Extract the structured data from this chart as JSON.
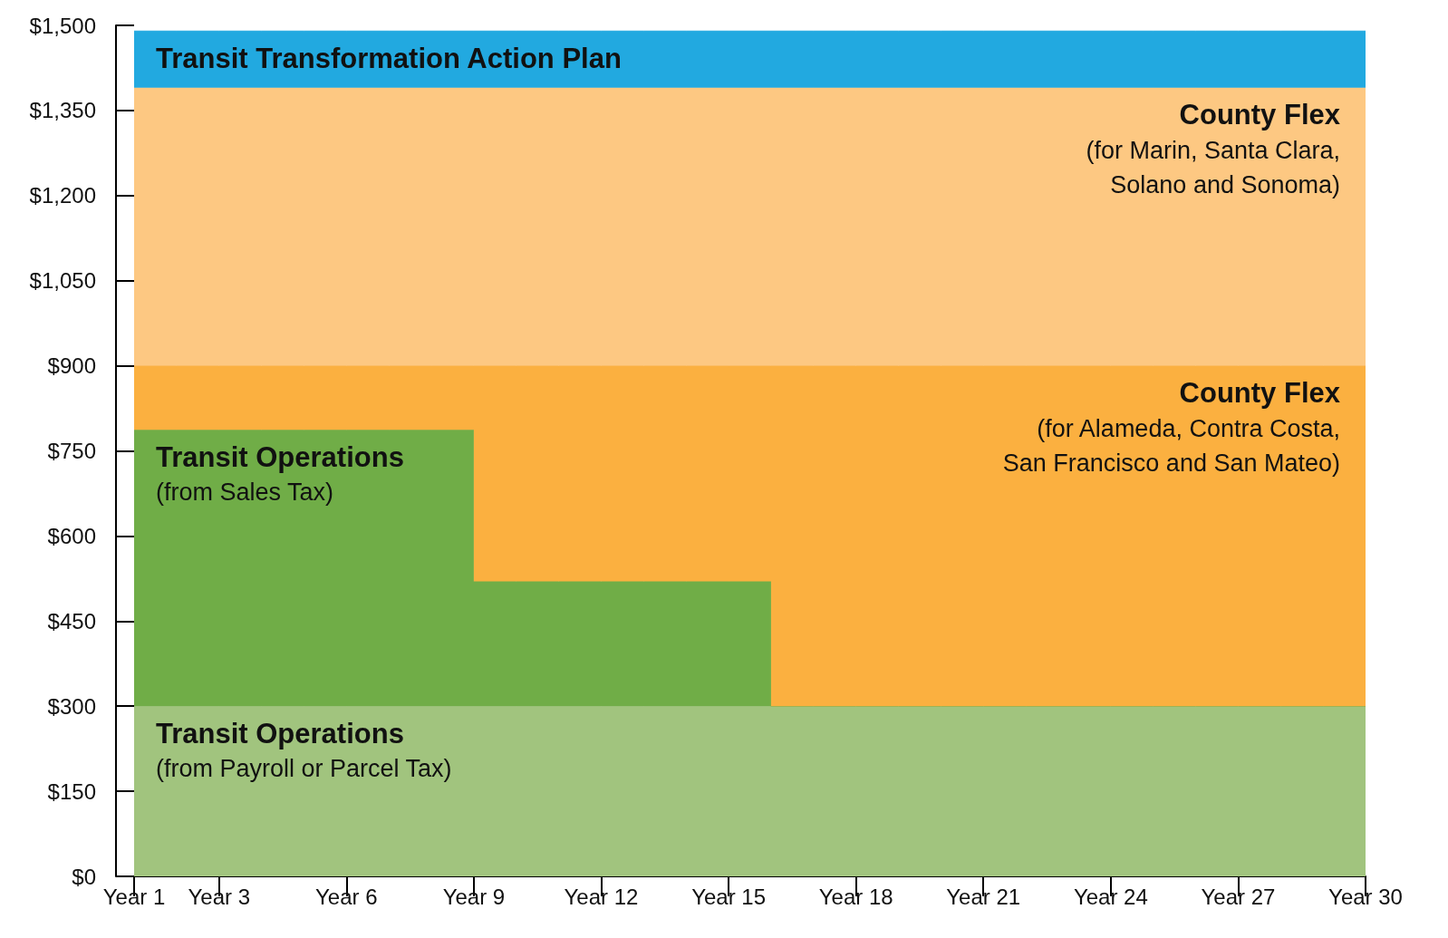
{
  "chart_data": {
    "type": "area",
    "stacked": true,
    "categories": [
      "Year 1",
      null,
      "Year 3",
      null,
      null,
      "Year 6",
      null,
      null,
      "Year 9",
      null,
      null,
      "Year 12",
      null,
      null,
      "Year 15",
      null,
      null,
      "Year 18",
      null,
      null,
      "Year 21",
      null,
      null,
      "Year 24",
      null,
      null,
      "Year 27",
      null,
      null,
      "Year 30"
    ],
    "series": [
      {
        "name": "Transit Operations\n(from Payroll or Parcel Tax)",
        "color": "#a1c47e",
        "values": [
          300,
          300,
          300,
          300,
          300,
          300,
          300,
          300,
          300,
          300,
          300,
          300,
          300,
          300,
          300,
          300,
          300,
          300,
          300,
          300,
          300,
          300,
          300,
          300,
          300,
          300,
          300,
          300,
          300,
          300
        ]
      },
      {
        "name": "Transit Operations\n(from Sales Tax)",
        "color": "#70ad47",
        "values": [
          487,
          487,
          487,
          487,
          487,
          487,
          487,
          487,
          220,
          220,
          220,
          220,
          220,
          220,
          220,
          0,
          0,
          0,
          0,
          0,
          0,
          0,
          0,
          0,
          0,
          0,
          0,
          0,
          0,
          0
        ]
      },
      {
        "name": "County Flex\n(for Alameda, Contra Costa,\nSan Francisco and San Mateo)",
        "color": "#fbb040",
        "values": [
          113,
          113,
          113,
          113,
          113,
          113,
          113,
          113,
          380,
          380,
          380,
          380,
          380,
          380,
          380,
          600,
          600,
          600,
          600,
          600,
          600,
          600,
          600,
          600,
          600,
          600,
          600,
          600,
          600,
          600
        ]
      },
      {
        "name": "County Flex\n(for Marin, Santa Clara,\nSolano and Sonoma)",
        "color": "#fdc882",
        "values": [
          490,
          490,
          490,
          490,
          490,
          490,
          490,
          490,
          490,
          490,
          490,
          490,
          490,
          490,
          490,
          490,
          490,
          490,
          490,
          490,
          490,
          490,
          490,
          490,
          490,
          490,
          490,
          490,
          490,
          490
        ]
      },
      {
        "name": "Transit Transformation Action Plan",
        "color": "#22a9e0",
        "values": [
          100,
          100,
          100,
          100,
          100,
          100,
          100,
          100,
          100,
          100,
          100,
          100,
          100,
          100,
          100,
          100,
          100,
          100,
          100,
          100,
          100,
          100,
          100,
          100,
          100,
          100,
          100,
          100,
          100,
          100
        ]
      }
    ],
    "ylim": [
      0,
      1500
    ],
    "yticks": [
      {
        "value": 0,
        "label": "$0"
      },
      {
        "value": 150,
        "label": "$150"
      },
      {
        "value": 300,
        "label": "$300"
      },
      {
        "value": 450,
        "label": "$450"
      },
      {
        "value": 600,
        "label": "$600"
      },
      {
        "value": 750,
        "label": "$750"
      },
      {
        "value": 900,
        "label": "$900"
      },
      {
        "value": 1050,
        "label": "$1,050"
      },
      {
        "value": 1200,
        "label": "$1,200"
      },
      {
        "value": 1350,
        "label": "$1,350"
      },
      {
        "value": 1500,
        "label": "$1,500"
      }
    ],
    "grid": false
  }
}
